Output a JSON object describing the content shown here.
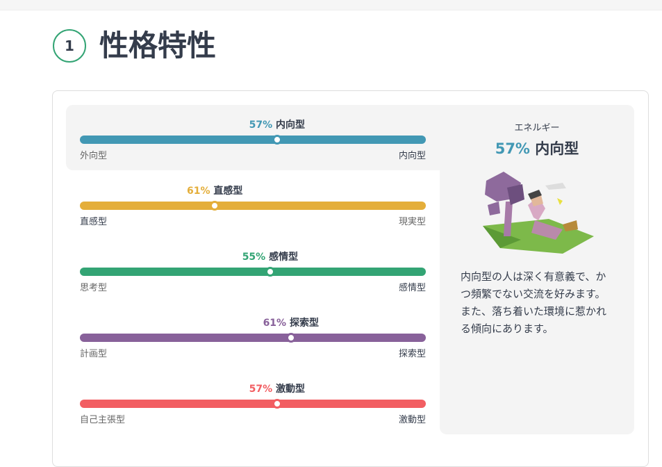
{
  "header": {
    "number": "1",
    "title": "性格特性"
  },
  "traits": [
    {
      "value": 57,
      "value_label": "57%",
      "name": "内向型",
      "left": "外向型",
      "right": "内向型",
      "color": "#4298b4"
    },
    {
      "value": 61,
      "value_label": "61%",
      "name": "直感型",
      "left": "直感型",
      "right": "現実型",
      "color": "#e4ae3a"
    },
    {
      "value": 55,
      "value_label": "55%",
      "name": "感情型",
      "left": "思考型",
      "right": "感情型",
      "color": "#33a474"
    },
    {
      "value": 61,
      "value_label": "61%",
      "name": "探索型",
      "left": "計画型",
      "right": "探索型",
      "color": "#88619a"
    },
    {
      "value": 57,
      "value_label": "57%",
      "name": "激動型",
      "left": "自己主張型",
      "right": "激動型",
      "color": "#f25e62"
    }
  ],
  "panel": {
    "heading": "エネルギー",
    "value_label": "57%",
    "name": "内向型",
    "description": "内向型の人は深く有意義で、かつ頻繁でない交流を好みます。また、落ち着いた環境に惹かれる傾向にあります。"
  }
}
